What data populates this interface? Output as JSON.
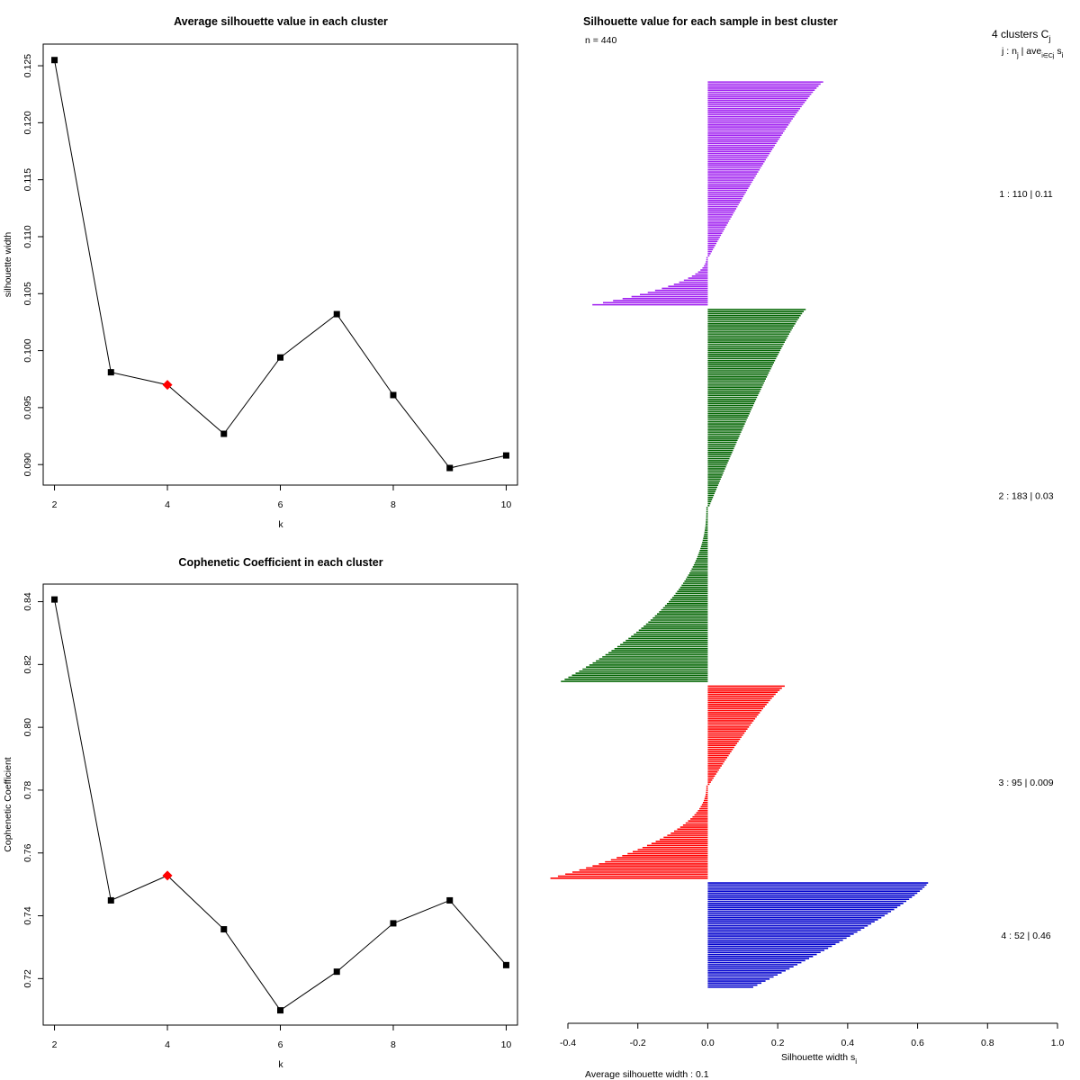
{
  "chart_data": [
    {
      "type": "line",
      "title": "Average silhouette value in each cluster",
      "xlabel": "k",
      "ylabel": "silhouette width",
      "x": [
        2,
        3,
        4,
        5,
        6,
        7,
        8,
        9,
        10
      ],
      "y": [
        0.1255,
        0.0981,
        0.097,
        0.0927,
        0.0994,
        0.1032,
        0.0961,
        0.0897,
        0.0908
      ],
      "highlight_index": 2,
      "highlight_color": "#ff0000",
      "xticks": [
        "2",
        "4",
        "6",
        "8",
        "10"
      ],
      "xtick_values": [
        2,
        4,
        6,
        8,
        10
      ],
      "yticks": [
        "0.090",
        "0.095",
        "0.100",
        "0.105",
        "0.110",
        "0.115",
        "0.120",
        "0.125"
      ],
      "ytick_values": [
        0.09,
        0.095,
        0.1,
        0.105,
        0.11,
        0.115,
        0.12,
        0.125
      ],
      "xlim": [
        1.8,
        10.2
      ],
      "ylim": [
        0.0882,
        0.1269
      ]
    },
    {
      "type": "line",
      "title": "Cophenetic Coefficient in each cluster",
      "xlabel": "k",
      "ylabel": "Cophenetic Coefficient",
      "x": [
        2,
        3,
        4,
        5,
        6,
        7,
        8,
        9,
        10
      ],
      "y": [
        0.8407,
        0.7449,
        0.7528,
        0.7357,
        0.7099,
        0.7222,
        0.7376,
        0.7449,
        0.7243
      ],
      "highlight_index": 2,
      "highlight_color": "#ff0000",
      "xticks": [
        "2",
        "4",
        "6",
        "8",
        "10"
      ],
      "xtick_values": [
        2,
        4,
        6,
        8,
        10
      ],
      "yticks": [
        "0.72",
        "0.74",
        "0.76",
        "0.78",
        "0.80",
        "0.82",
        "0.84"
      ],
      "ytick_values": [
        0.72,
        0.74,
        0.76,
        0.78,
        0.8,
        0.82,
        0.84
      ],
      "xlim": [
        1.8,
        10.2
      ],
      "ylim": [
        0.7052,
        0.8456
      ]
    },
    {
      "type": "bar",
      "orientation": "horizontal",
      "title": "Silhouette value for each sample in best cluster",
      "n_label": "n = 440",
      "xlabel": "Silhouette width s",
      "xlabel_sub": "i",
      "xlim": [
        -0.4,
        1.0
      ],
      "xticks": [
        "-0.4",
        "-0.2",
        "0.0",
        "0.2",
        "0.4",
        "0.6",
        "0.8",
        "1.0"
      ],
      "xtick_values": [
        -0.4,
        -0.2,
        0.0,
        0.2,
        0.4,
        0.6,
        0.8,
        1.0
      ],
      "legend_header": "4  clusters  C",
      "legend_header_sub": "j",
      "legend_subheader": "j :  n",
      "legend_subheader_sub": "j",
      "legend_subheader_rest": " | ave",
      "legend_subheader_sub2": "i∈Cj",
      "legend_subheader_end": " s",
      "legend_subheader_sub3": "i",
      "average_label": "Average silhouette width :  0.1",
      "clusters": [
        {
          "id": 1,
          "n": 110,
          "avg": "0.11",
          "label": "1 :   110  |  0.11",
          "color": "#a020f0",
          "max": 0.33,
          "min": -0.33,
          "zero_frac": 0.78
        },
        {
          "id": 2,
          "n": 183,
          "avg": "0.03",
          "label": "2 :   183  |  0.03",
          "color": "#006400",
          "max": 0.28,
          "min": -0.42,
          "zero_frac": 0.53
        },
        {
          "id": 3,
          "n": 95,
          "avg": "0.009",
          "label": "3 :  95  |  0.009",
          "color": "#ff0000",
          "max": 0.22,
          "min": -0.45,
          "zero_frac": 0.52
        },
        {
          "id": 4,
          "n": 52,
          "avg": "0.46",
          "label": "4 :   52  |  0.46",
          "color": "#0000cd",
          "max": 0.63,
          "min": 0.13,
          "zero_frac": 1.0
        }
      ]
    }
  ]
}
